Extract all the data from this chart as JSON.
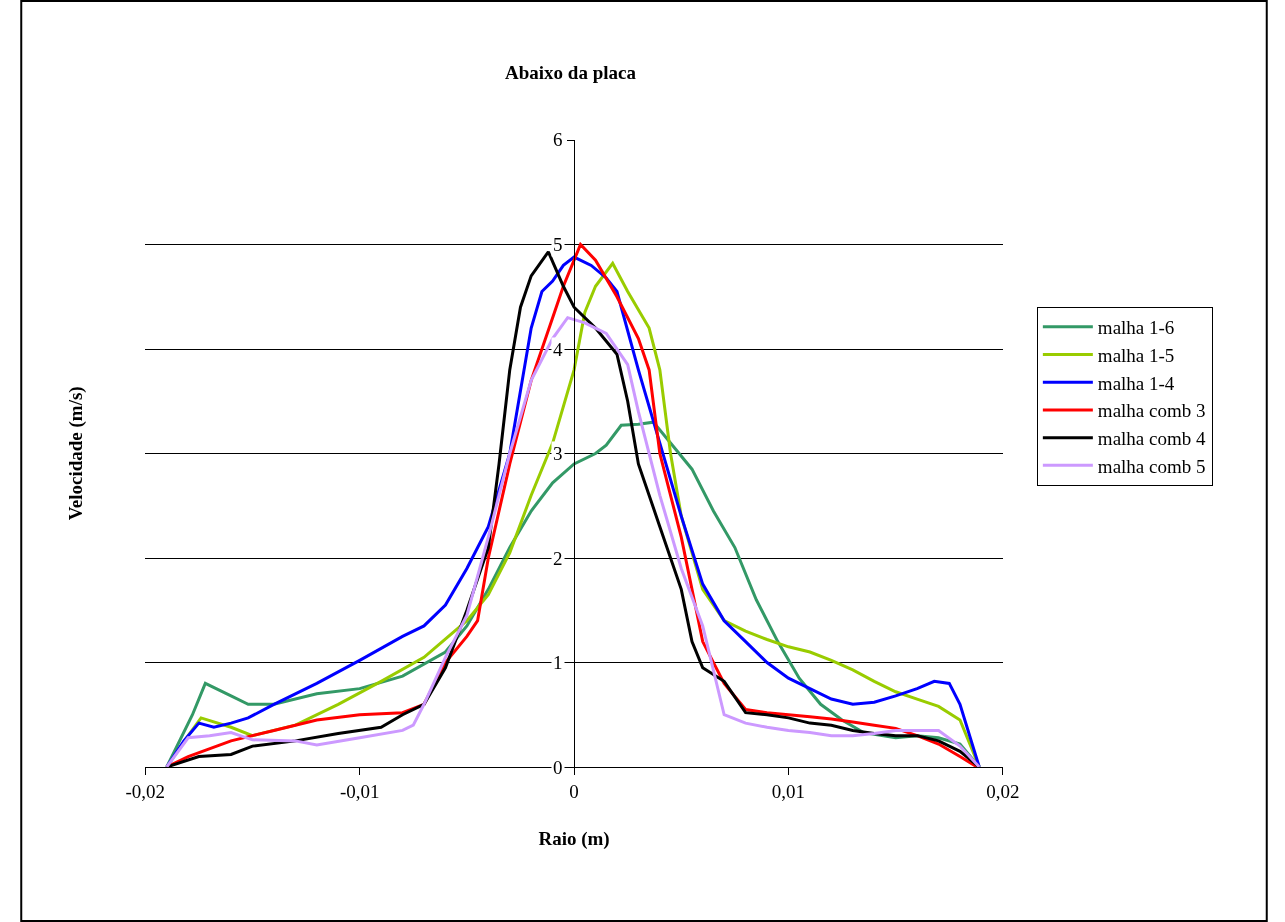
{
  "chart_data": {
    "type": "line",
    "title": "Abaixo da placa",
    "xlabel": "Raio (m)",
    "ylabel": "Velocidade (m/s)",
    "xlim": [
      -0.02,
      0.02
    ],
    "ylim": [
      0,
      6
    ],
    "xticks": [
      {
        "value": -0.02,
        "label": "-0,02"
      },
      {
        "value": -0.01,
        "label": "-0,01"
      },
      0,
      {
        "value": 0.01,
        "label": "0,01"
      },
      {
        "value": 0.02,
        "label": "0,02"
      }
    ],
    "yticks": [
      0,
      1,
      2,
      3,
      4,
      5,
      6
    ],
    "grid": "y",
    "legend": "right",
    "marker": "none",
    "line_style": "solid",
    "series": [
      {
        "name": "malha 1-6",
        "color": "#339966",
        "x": [
          -0.019,
          -0.0178,
          -0.0172,
          -0.016,
          -0.0152,
          -0.014,
          -0.012,
          -0.01,
          -0.008,
          -0.006,
          -0.005,
          -0.004,
          -0.003,
          -0.002,
          -0.001,
          0,
          0.001,
          0.0015,
          0.0022,
          0.003,
          0.0037,
          0.0045,
          0.0055,
          0.0065,
          0.0075,
          0.0085,
          0.0095,
          0.0105,
          0.0115,
          0.0125,
          0.0135,
          0.015,
          0.016,
          0.017,
          0.018,
          0.0189
        ],
        "values": [
          0,
          0.5,
          0.8,
          0.68,
          0.6,
          0.6,
          0.7,
          0.75,
          0.87,
          1.1,
          1.35,
          1.7,
          2.1,
          2.45,
          2.72,
          2.9,
          3.0,
          3.08,
          3.27,
          3.28,
          3.3,
          3.1,
          2.85,
          2.45,
          2.1,
          1.6,
          1.2,
          0.85,
          0.6,
          0.45,
          0.33,
          0.28,
          0.3,
          0.28,
          0.22,
          0
        ]
      },
      {
        "name": "malha 1-5",
        "color": "#99cc00",
        "x": [
          -0.019,
          -0.018,
          -0.0174,
          -0.016,
          -0.015,
          -0.013,
          -0.011,
          -0.009,
          -0.007,
          -0.005,
          -0.004,
          -0.003,
          -0.002,
          -0.001,
          0,
          0.0005,
          0.001,
          0.0018,
          0.0025,
          0.0035,
          0.004,
          0.0045,
          0.005,
          0.006,
          0.007,
          0.008,
          0.009,
          0.01,
          0.011,
          0.012,
          0.013,
          0.014,
          0.015,
          0.016,
          0.017,
          0.018,
          0.0189
        ],
        "values": [
          0,
          0.3,
          0.47,
          0.38,
          0.3,
          0.4,
          0.6,
          0.82,
          1.05,
          1.4,
          1.65,
          2.05,
          2.6,
          3.1,
          3.8,
          4.35,
          4.6,
          4.82,
          4.55,
          4.2,
          3.8,
          3.0,
          2.4,
          1.7,
          1.4,
          1.3,
          1.22,
          1.15,
          1.1,
          1.02,
          0.93,
          0.82,
          0.72,
          0.65,
          0.58,
          0.45,
          0
        ]
      },
      {
        "name": "malha 1-4",
        "color": "#0000ff",
        "x": [
          -0.019,
          -0.0182,
          -0.0175,
          -0.0168,
          -0.016,
          -0.0152,
          -0.014,
          -0.012,
          -0.01,
          -0.008,
          -0.007,
          -0.006,
          -0.005,
          -0.004,
          -0.003,
          -0.0025,
          -0.002,
          -0.0015,
          -0.001,
          -0.0005,
          0,
          0.0008,
          0.0015,
          0.002,
          0.003,
          0.004,
          0.005,
          0.006,
          0.007,
          0.008,
          0.009,
          0.01,
          0.011,
          0.012,
          0.013,
          0.014,
          0.015,
          0.016,
          0.0168,
          0.0175,
          0.018,
          0.0189
        ],
        "values": [
          0,
          0.25,
          0.42,
          0.38,
          0.42,
          0.47,
          0.6,
          0.8,
          1.02,
          1.25,
          1.35,
          1.55,
          1.9,
          2.3,
          3.0,
          3.6,
          4.2,
          4.55,
          4.65,
          4.8,
          4.88,
          4.8,
          4.68,
          4.55,
          3.8,
          3.1,
          2.4,
          1.75,
          1.4,
          1.2,
          1.0,
          0.85,
          0.75,
          0.65,
          0.6,
          0.62,
          0.68,
          0.75,
          0.82,
          0.8,
          0.6,
          0
        ]
      },
      {
        "name": "malha comb 3",
        "color": "#ff0000",
        "x": [
          -0.019,
          -0.018,
          -0.016,
          -0.014,
          -0.012,
          -0.01,
          -0.008,
          -0.007,
          -0.006,
          -0.005,
          -0.0045,
          -0.004,
          -0.003,
          -0.002,
          -0.001,
          -0.0005,
          0.0003,
          0.001,
          0.002,
          0.003,
          0.0035,
          0.004,
          0.005,
          0.006,
          0.007,
          0.008,
          0.009,
          0.01,
          0.011,
          0.012,
          0.013,
          0.014,
          0.015,
          0.016,
          0.017,
          0.018,
          0.0188
        ],
        "values": [
          0,
          0.1,
          0.25,
          0.35,
          0.45,
          0.5,
          0.52,
          0.6,
          1.0,
          1.25,
          1.4,
          2.0,
          2.9,
          3.7,
          4.3,
          4.6,
          5.0,
          4.85,
          4.5,
          4.1,
          3.8,
          3.0,
          2.2,
          1.2,
          0.8,
          0.55,
          0.52,
          0.5,
          0.48,
          0.46,
          0.43,
          0.4,
          0.37,
          0.3,
          0.22,
          0.1,
          0
        ]
      },
      {
        "name": "malha comb 4",
        "color": "#000000",
        "x": [
          -0.019,
          -0.0175,
          -0.016,
          -0.015,
          -0.013,
          -0.011,
          -0.009,
          -0.008,
          -0.007,
          -0.006,
          -0.005,
          -0.004,
          -0.0035,
          -0.003,
          -0.0025,
          -0.002,
          -0.0012,
          -0.0005,
          0,
          0.001,
          0.002,
          0.0025,
          0.003,
          0.004,
          0.005,
          0.0055,
          0.006,
          0.007,
          0.008,
          0.009,
          0.01,
          0.011,
          0.012,
          0.013,
          0.014,
          0.015,
          0.016,
          0.017,
          0.018,
          0.0189
        ],
        "values": [
          0,
          0.1,
          0.12,
          0.2,
          0.25,
          0.32,
          0.38,
          0.5,
          0.6,
          0.95,
          1.5,
          2.1,
          2.9,
          3.8,
          4.4,
          4.7,
          4.93,
          4.6,
          4.4,
          4.2,
          3.95,
          3.5,
          2.9,
          2.3,
          1.7,
          1.2,
          0.95,
          0.82,
          0.52,
          0.5,
          0.47,
          0.42,
          0.4,
          0.35,
          0.32,
          0.3,
          0.3,
          0.25,
          0.15,
          0
        ]
      },
      {
        "name": "malha comb 5",
        "color": "#cc99ff",
        "x": [
          -0.019,
          -0.018,
          -0.017,
          -0.016,
          -0.015,
          -0.013,
          -0.012,
          -0.01,
          -0.008,
          -0.0075,
          -0.007,
          -0.006,
          -0.005,
          -0.004,
          -0.003,
          -0.002,
          -0.001,
          -0.0003,
          0.0005,
          0.0015,
          0.0025,
          0.003,
          0.004,
          0.005,
          0.006,
          0.007,
          0.008,
          0.009,
          0.01,
          0.011,
          0.012,
          0.013,
          0.014,
          0.015,
          0.016,
          0.017,
          0.018,
          0.0189
        ],
        "values": [
          0,
          0.28,
          0.3,
          0.33,
          0.26,
          0.25,
          0.21,
          0.28,
          0.35,
          0.4,
          0.6,
          1.05,
          1.45,
          2.2,
          3.0,
          3.7,
          4.1,
          4.3,
          4.25,
          4.15,
          3.85,
          3.4,
          2.6,
          1.9,
          1.35,
          0.5,
          0.42,
          0.38,
          0.35,
          0.33,
          0.3,
          0.3,
          0.32,
          0.35,
          0.35,
          0.35,
          0.2,
          0
        ]
      }
    ]
  }
}
